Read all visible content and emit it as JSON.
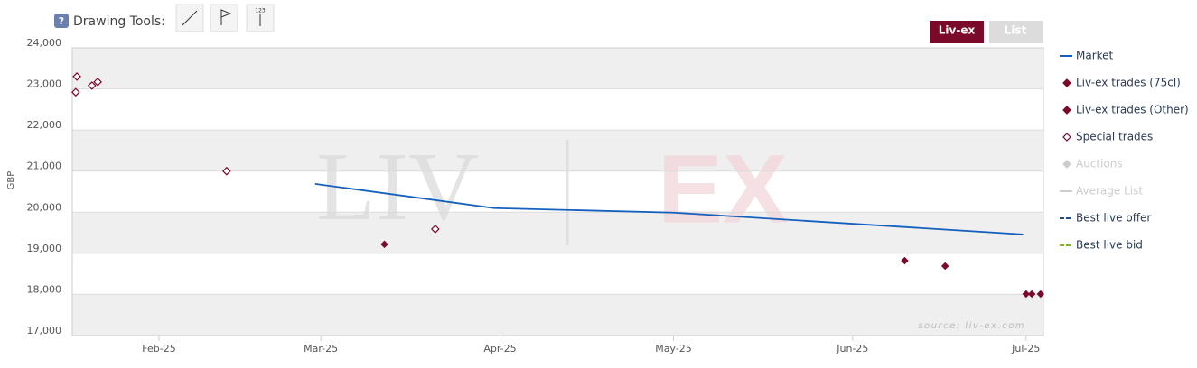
{
  "toolbar": {
    "help": "?",
    "label": "Drawing Tools:",
    "icon_text": "123"
  },
  "buttons": [
    "Liv-ex",
    "List"
  ],
  "chart_data": {
    "type": "scatter",
    "y_label": "GBP",
    "watermark": [
      "LIV",
      "EX"
    ],
    "source": "source: liv-ex.com",
    "xlim": [
      16,
      184
    ],
    "xticks": [
      {
        "value": 31,
        "label": "Feb-25"
      },
      {
        "value": 59,
        "label": "Mar-25"
      },
      {
        "value": 90,
        "label": "Apr-25"
      },
      {
        "value": 120,
        "label": "May-25"
      },
      {
        "value": 151,
        "label": "Jun-25"
      },
      {
        "value": 181,
        "label": "Jul-25"
      }
    ],
    "ylim": [
      17000,
      24000
    ],
    "yticks": [
      {
        "value": 17000,
        "label": "17,000"
      },
      {
        "value": 18000,
        "label": "18,000"
      },
      {
        "value": 19000,
        "label": "19,000"
      },
      {
        "value": 20000,
        "label": "20,000"
      },
      {
        "value": 21000,
        "label": "21,000"
      },
      {
        "value": 22000,
        "label": "22,000"
      },
      {
        "value": 23000,
        "label": "23,000"
      },
      {
        "value": 24000,
        "label": "24,000"
      }
    ],
    "series": [
      {
        "name": "Market",
        "color": "#1560bd",
        "marker": "line",
        "visible": true,
        "x": [
          58,
          89,
          120,
          180.5
        ],
        "values": [
          20690,
          20100,
          19990,
          19460
        ]
      },
      {
        "name": "Liv-ex trades (75cl)",
        "color": "#7b0a2a",
        "marker": "diamond",
        "visible": true,
        "x": [
          70,
          160,
          167,
          181,
          182,
          183.5
        ],
        "values": [
          19220,
          18820,
          18690,
          18010,
          18010,
          18010
        ]
      },
      {
        "name": "Liv-ex trades (Other)",
        "color": "#7b0a2a",
        "marker": "diamond",
        "visible": true,
        "x": [],
        "values": []
      },
      {
        "name": "Special trades",
        "color": "#7b0a2a",
        "marker": "diamond-open",
        "visible": true,
        "x": [
          16.6,
          16.8,
          19.4,
          20.4,
          42.7,
          78.8
        ],
        "values": [
          22920,
          23300,
          23080,
          23170,
          21000,
          19590
        ]
      },
      {
        "name": "Auctions",
        "color": "#cccccc",
        "marker": "diamond",
        "visible": false,
        "x": [],
        "values": []
      },
      {
        "name": "Average List",
        "color": "#cccccc",
        "marker": "line",
        "visible": false,
        "x": [],
        "values": []
      },
      {
        "name": "Best live offer",
        "color": "#1f4e8c",
        "marker": "dash",
        "visible": true,
        "x": [],
        "values": []
      },
      {
        "name": "Best live bid",
        "color": "#7cb518",
        "marker": "dash",
        "visible": true,
        "x": [],
        "values": []
      }
    ]
  }
}
